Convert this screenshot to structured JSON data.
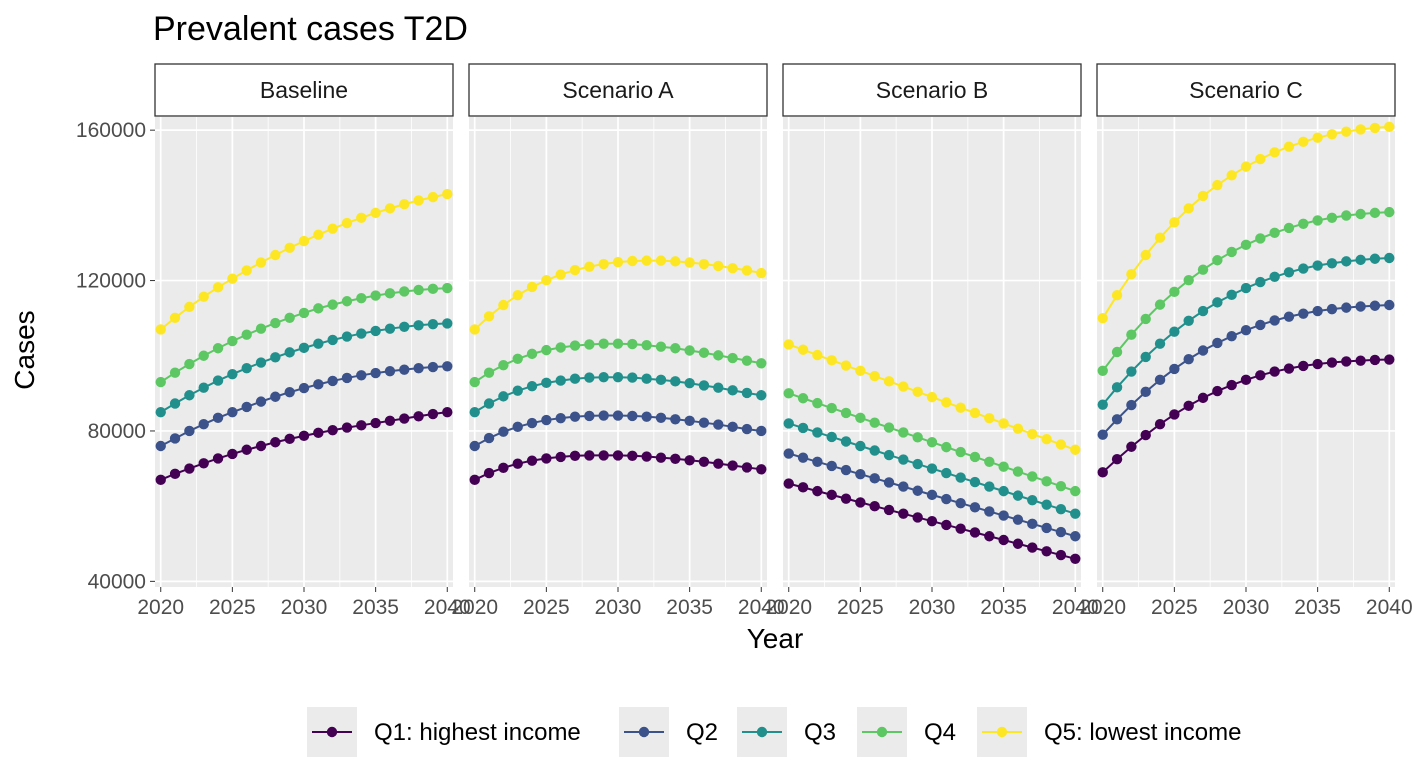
{
  "chart_data": {
    "type": "line",
    "title": "Prevalent cases T2D",
    "xlabel": "Year",
    "ylabel": "Cases",
    "x": [
      2020,
      2021,
      2022,
      2023,
      2024,
      2025,
      2026,
      2027,
      2028,
      2029,
      2030,
      2031,
      2032,
      2033,
      2034,
      2035,
      2036,
      2037,
      2038,
      2039,
      2040
    ],
    "xlim": [
      2019.6,
      2040.4
    ],
    "ylim": [
      38500,
      163500
    ],
    "xticks": [
      2020,
      2025,
      2030,
      2035,
      2040
    ],
    "xtick_labels": [
      "2020",
      "2025",
      "2030",
      "2035",
      "2040"
    ],
    "yticks": [
      40000,
      80000,
      120000,
      160000
    ],
    "ytick_labels": [
      "40000",
      "80000",
      "120000",
      "160000"
    ],
    "grid": true,
    "legend_position": "bottom",
    "series_meta": [
      {
        "name": "Q1: highest income",
        "color": "#440154"
      },
      {
        "name": "Q2",
        "color": "#3B528B"
      },
      {
        "name": "Q3",
        "color": "#21908C"
      },
      {
        "name": "Q4",
        "color": "#5DC863"
      },
      {
        "name": "Q5: lowest income",
        "color": "#FDE725"
      }
    ],
    "panels": [
      {
        "label": "Baseline",
        "series": [
          {
            "name": "Q1: highest income",
            "values": [
              67000,
              68600,
              70000,
              71400,
              72700,
              73900,
              75000,
              76000,
              77000,
              77900,
              78700,
              79500,
              80200,
              80900,
              81500,
              82100,
              82700,
              83300,
              83900,
              84500,
              85000
            ]
          },
          {
            "name": "Q2",
            "values": [
              76000,
              78000,
              80000,
              81800,
              83500,
              85000,
              86400,
              87800,
              89100,
              90300,
              91400,
              92400,
              93300,
              94100,
              94800,
              95400,
              95900,
              96300,
              96700,
              97000,
              97200
            ]
          },
          {
            "name": "Q3",
            "values": [
              85000,
              87300,
              89500,
              91500,
              93400,
              95100,
              96700,
              98200,
              99600,
              100900,
              102100,
              103200,
              104200,
              105100,
              105900,
              106600,
              107200,
              107700,
              108100,
              108400,
              108600
            ]
          },
          {
            "name": "Q4",
            "values": [
              93000,
              95500,
              97800,
              100000,
              102000,
              103900,
              105600,
              107200,
              108700,
              110100,
              111400,
              112600,
              113600,
              114500,
              115300,
              116000,
              116600,
              117100,
              117500,
              117800,
              118000
            ]
          },
          {
            "name": "Q5: lowest income",
            "values": [
              107000,
              110100,
              113000,
              115700,
              118200,
              120500,
              122700,
              124800,
              126800,
              128700,
              130500,
              132200,
              133800,
              135300,
              136700,
              138000,
              139200,
              140300,
              141300,
              142200,
              143000
            ]
          }
        ]
      },
      {
        "label": "Scenario A",
        "series": [
          {
            "name": "Q1: highest income",
            "values": [
              67000,
              68800,
              70200,
              71300,
              72100,
              72700,
              73100,
              73400,
              73500,
              73500,
              73500,
              73400,
              73200,
              72900,
              72600,
              72200,
              71800,
              71300,
              70800,
              70300,
              69800
            ]
          },
          {
            "name": "Q2",
            "values": [
              76000,
              78100,
              79800,
              81100,
              82100,
              82900,
              83400,
              83800,
              84000,
              84100,
              84100,
              84000,
              83800,
              83500,
              83100,
              82700,
              82200,
              81700,
              81100,
              80500,
              80000
            ]
          },
          {
            "name": "Q3",
            "values": [
              85000,
              87300,
              89200,
              90700,
              91900,
              92800,
              93400,
              93900,
              94200,
              94300,
              94300,
              94200,
              93900,
              93600,
              93200,
              92700,
              92100,
              91500,
              90800,
              90100,
              89500
            ]
          },
          {
            "name": "Q4",
            "values": [
              93000,
              95500,
              97500,
              99200,
              100500,
              101500,
              102200,
              102700,
              103000,
              103200,
              103200,
              103100,
              102800,
              102400,
              102000,
              101400,
              100800,
              100100,
              99400,
              98700,
              98000
            ]
          },
          {
            "name": "Q5: lowest income",
            "values": [
              107000,
              110500,
              113500,
              116100,
              118300,
              120100,
              121600,
              122800,
              123700,
              124400,
              124900,
              125200,
              125300,
              125300,
              125100,
              124800,
              124400,
              123900,
              123300,
              122700,
              122000
            ]
          }
        ]
      },
      {
        "label": "Scenario B",
        "series": [
          {
            "name": "Q1: highest income",
            "values": [
              66000,
              65000,
              64000,
              63000,
              62000,
              61000,
              60000,
              59000,
              58000,
              57000,
              56000,
              55000,
              54000,
              53000,
              52000,
              51000,
              50000,
              49000,
              48000,
              47000,
              46000
            ]
          },
          {
            "name": "Q2",
            "values": [
              74000,
              72900,
              71800,
              70700,
              69600,
              68500,
              67400,
              66300,
              65200,
              64100,
              63000,
              61900,
              60800,
              59700,
              58600,
              57500,
              56400,
              55300,
              54200,
              53100,
              52000
            ]
          },
          {
            "name": "Q3",
            "values": [
              82000,
              80800,
              79600,
              78400,
              77200,
              76000,
              74800,
              73600,
              72400,
              71200,
              70000,
              68800,
              67600,
              66400,
              65200,
              64000,
              62800,
              61600,
              60400,
              59200,
              58000
            ]
          },
          {
            "name": "Q4",
            "values": [
              90000,
              88700,
              87400,
              86100,
              84800,
              83500,
              82200,
              80900,
              79600,
              78300,
              77000,
              75700,
              74400,
              73100,
              71800,
              70500,
              69200,
              67900,
              66600,
              65300,
              64000
            ]
          },
          {
            "name": "Q5: lowest income",
            "values": [
              103000,
              101600,
              100200,
              98800,
              97400,
              96000,
              94600,
              93200,
              91800,
              90400,
              89000,
              87600,
              86200,
              84800,
              83400,
              82000,
              80600,
              79200,
              77800,
              76400,
              75000
            ]
          }
        ]
      },
      {
        "label": "Scenario C",
        "series": [
          {
            "name": "Q1: highest income",
            "values": [
              69000,
              72500,
              75800,
              78900,
              81800,
              84400,
              86700,
              88800,
              90600,
              92200,
              93600,
              94800,
              95800,
              96600,
              97300,
              97800,
              98200,
              98500,
              98700,
              98900,
              99000
            ]
          },
          {
            "name": "Q2",
            "values": [
              79000,
              83100,
              86900,
              90400,
              93600,
              96500,
              99100,
              101400,
              103400,
              105200,
              106800,
              108200,
              109400,
              110400,
              111200,
              111900,
              112400,
              112800,
              113100,
              113300,
              113500
            ]
          },
          {
            "name": "Q3",
            "values": [
              87000,
              91600,
              95800,
              99700,
              103200,
              106400,
              109300,
              111900,
              114200,
              116200,
              118000,
              119600,
              121000,
              122200,
              123200,
              124000,
              124600,
              125100,
              125500,
              125800,
              126000
            ]
          },
          {
            "name": "Q4",
            "values": [
              96000,
              101000,
              105600,
              109800,
              113600,
              117000,
              120100,
              122900,
              125400,
              127600,
              129500,
              131200,
              132700,
              134000,
              135100,
              136000,
              136700,
              137300,
              137700,
              138000,
              138200
            ]
          },
          {
            "name": "Q5: lowest income",
            "values": [
              110000,
              116100,
              121700,
              126800,
              131400,
              135500,
              139200,
              142500,
              145400,
              148000,
              150300,
              152300,
              154100,
              155600,
              156900,
              158000,
              158900,
              159600,
              160200,
              160600,
              160900
            ]
          }
        ]
      }
    ]
  }
}
